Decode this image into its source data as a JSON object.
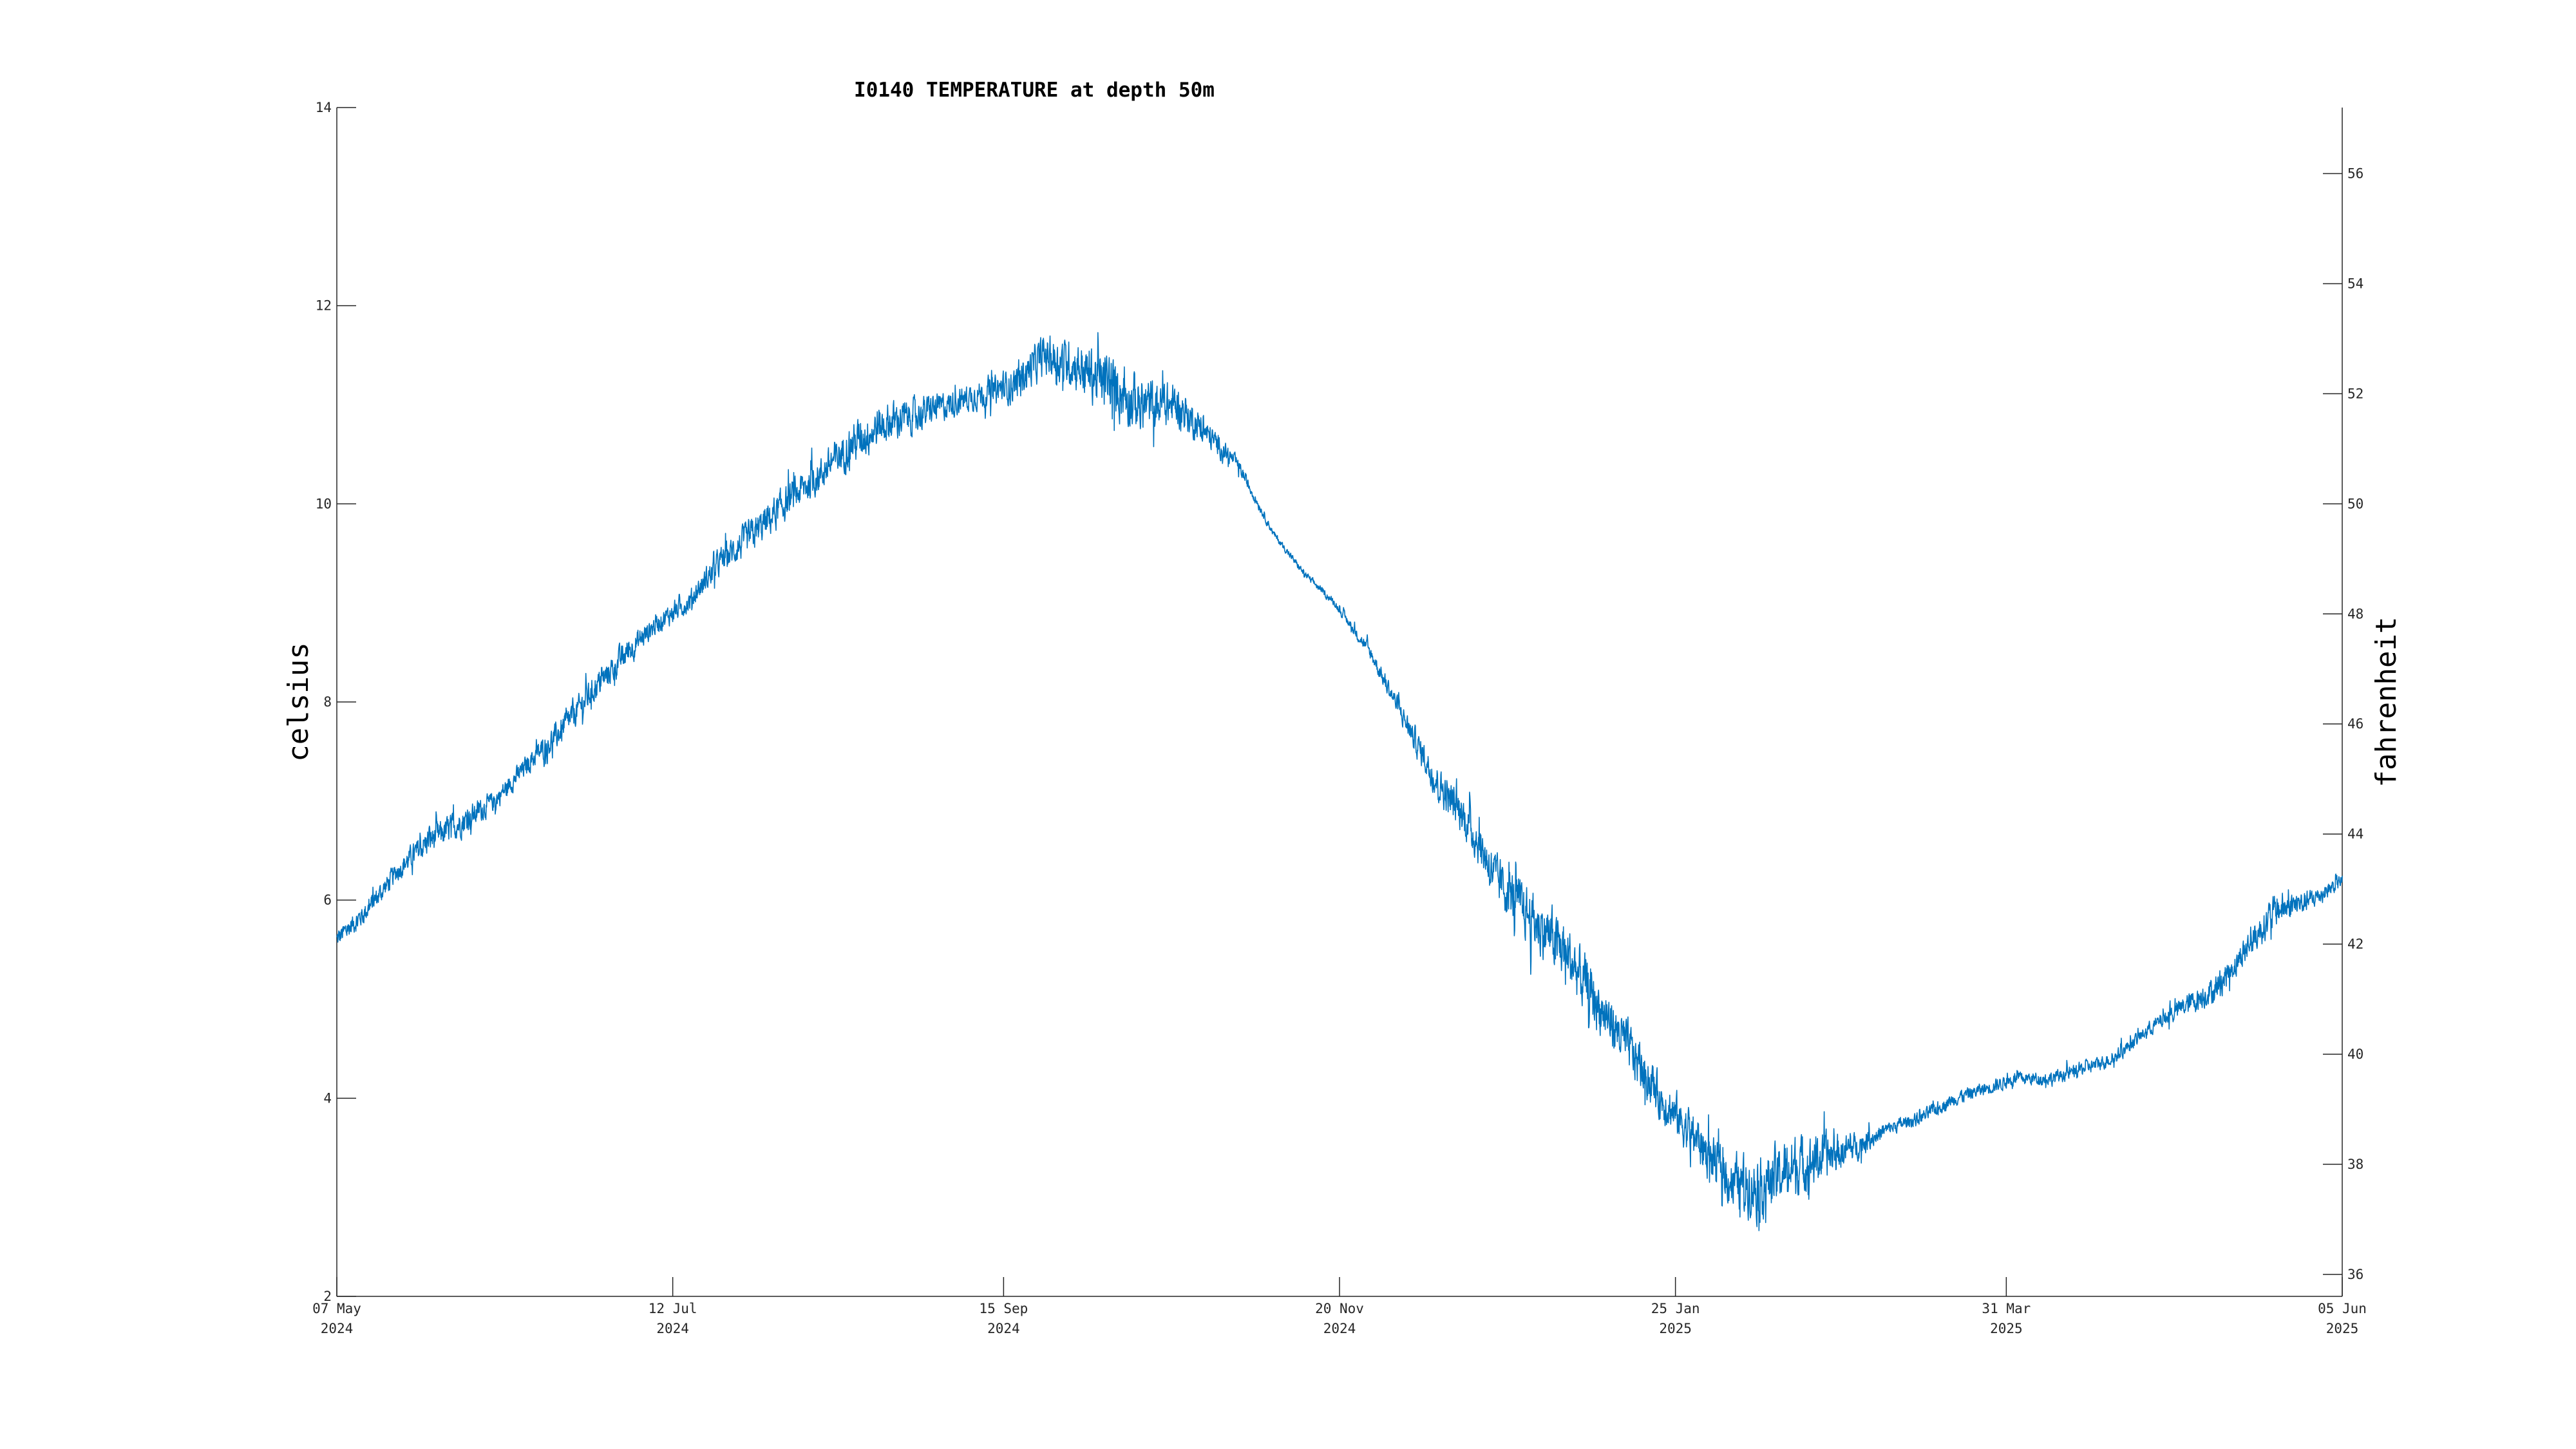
{
  "chart_data": {
    "type": "line",
    "title": "I0140 TEMPERATURE at depth 50m",
    "ylabel": "celsius",
    "ylabel_right": "fahrenheit",
    "xlabel": "",
    "xlim": [
      "2024-05-07",
      "2025-06-05"
    ],
    "ylim": [
      2,
      14
    ],
    "ylim_right_fahrenheit": [
      35.6,
      57.2
    ],
    "grid": false,
    "line_color": "#0072BD",
    "x_ticks": [
      {
        "date": "2024-05-07",
        "line1": "07 May",
        "line2": "2024"
      },
      {
        "date": "2024-07-12",
        "line1": "12 Jul",
        "line2": "2024"
      },
      {
        "date": "2024-09-15",
        "line1": "15 Sep",
        "line2": "2024"
      },
      {
        "date": "2024-11-20",
        "line1": "20 Nov",
        "line2": "2024"
      },
      {
        "date": "2025-01-25",
        "line1": "25 Jan",
        "line2": "2025"
      },
      {
        "date": "2025-03-31",
        "line1": "31 Mar",
        "line2": "2025"
      },
      {
        "date": "2025-06-05",
        "line1": "05 Jun",
        "line2": "2025"
      }
    ],
    "y_ticks": [
      "2",
      "4",
      "6",
      "8",
      "10",
      "12",
      "14"
    ],
    "y_ticks_right": [
      "36",
      "38",
      "40",
      "42",
      "44",
      "46",
      "48",
      "50",
      "52",
      "54",
      "56"
    ],
    "series": [
      {
        "x": [
          "2024-05-07",
          "2024-05-13",
          "2024-05-19",
          "2024-05-25",
          "2024-06-01",
          "2024-06-07",
          "2024-06-14",
          "2024-06-20",
          "2024-06-26",
          "2024-07-03",
          "2024-07-09",
          "2024-07-15",
          "2024-07-21",
          "2024-07-28",
          "2024-08-03",
          "2024-08-10",
          "2024-08-16",
          "2024-08-22",
          "2024-08-29",
          "2024-09-04",
          "2024-09-10",
          "2024-09-17",
          "2024-09-23",
          "2024-09-29",
          "2024-10-06",
          "2024-10-12",
          "2024-10-19",
          "2024-10-25",
          "2024-10-31",
          "2024-11-07",
          "2024-11-13",
          "2024-11-19",
          "2024-11-26",
          "2024-12-02",
          "2024-12-09",
          "2024-12-15",
          "2024-12-21",
          "2024-12-28",
          "2025-01-03",
          "2025-01-09",
          "2025-01-16",
          "2025-01-22",
          "2025-01-29",
          "2025-02-04",
          "2025-02-10",
          "2025-02-17",
          "2025-02-23",
          "2025-03-01",
          "2025-03-08",
          "2025-03-14",
          "2025-03-21",
          "2025-03-27",
          "2025-04-02",
          "2025-04-09",
          "2025-04-15",
          "2025-04-21",
          "2025-04-28",
          "2025-05-04",
          "2025-05-11",
          "2025-05-17",
          "2025-05-23",
          "2025-05-30",
          "2025-06-05"
        ],
        "y": [
          5.6,
          5.9,
          6.3,
          6.6,
          6.8,
          7.0,
          7.4,
          7.7,
          8.1,
          8.5,
          8.8,
          9.0,
          9.4,
          9.7,
          10.0,
          10.3,
          10.6,
          10.8,
          10.9,
          11.0,
          11.1,
          11.2,
          11.5,
          11.4,
          11.2,
          11.0,
          11.0,
          10.7,
          10.4,
          9.7,
          9.3,
          9.0,
          8.5,
          7.9,
          7.2,
          6.8,
          6.2,
          5.8,
          5.5,
          5.0,
          4.5,
          4.0,
          3.6,
          3.2,
          3.1,
          3.3,
          3.4,
          3.5,
          3.7,
          3.8,
          4.0,
          4.1,
          4.2,
          4.2,
          4.3,
          4.4,
          4.7,
          4.9,
          5.1,
          5.5,
          5.9,
          6.0,
          6.2
        ],
        "noise": [
          0.15,
          0.15,
          0.15,
          0.2,
          0.2,
          0.15,
          0.15,
          0.2,
          0.2,
          0.2,
          0.15,
          0.15,
          0.2,
          0.25,
          0.25,
          0.25,
          0.3,
          0.3,
          0.25,
          0.2,
          0.2,
          0.25,
          0.3,
          0.35,
          0.45,
          0.4,
          0.3,
          0.2,
          0.1,
          0.05,
          0.05,
          0.05,
          0.1,
          0.15,
          0.25,
          0.3,
          0.35,
          0.4,
          0.45,
          0.4,
          0.35,
          0.3,
          0.35,
          0.35,
          0.45,
          0.45,
          0.35,
          0.2,
          0.1,
          0.1,
          0.1,
          0.1,
          0.1,
          0.1,
          0.1,
          0.1,
          0.1,
          0.15,
          0.2,
          0.2,
          0.25,
          0.15,
          0.1
        ]
      }
    ]
  }
}
